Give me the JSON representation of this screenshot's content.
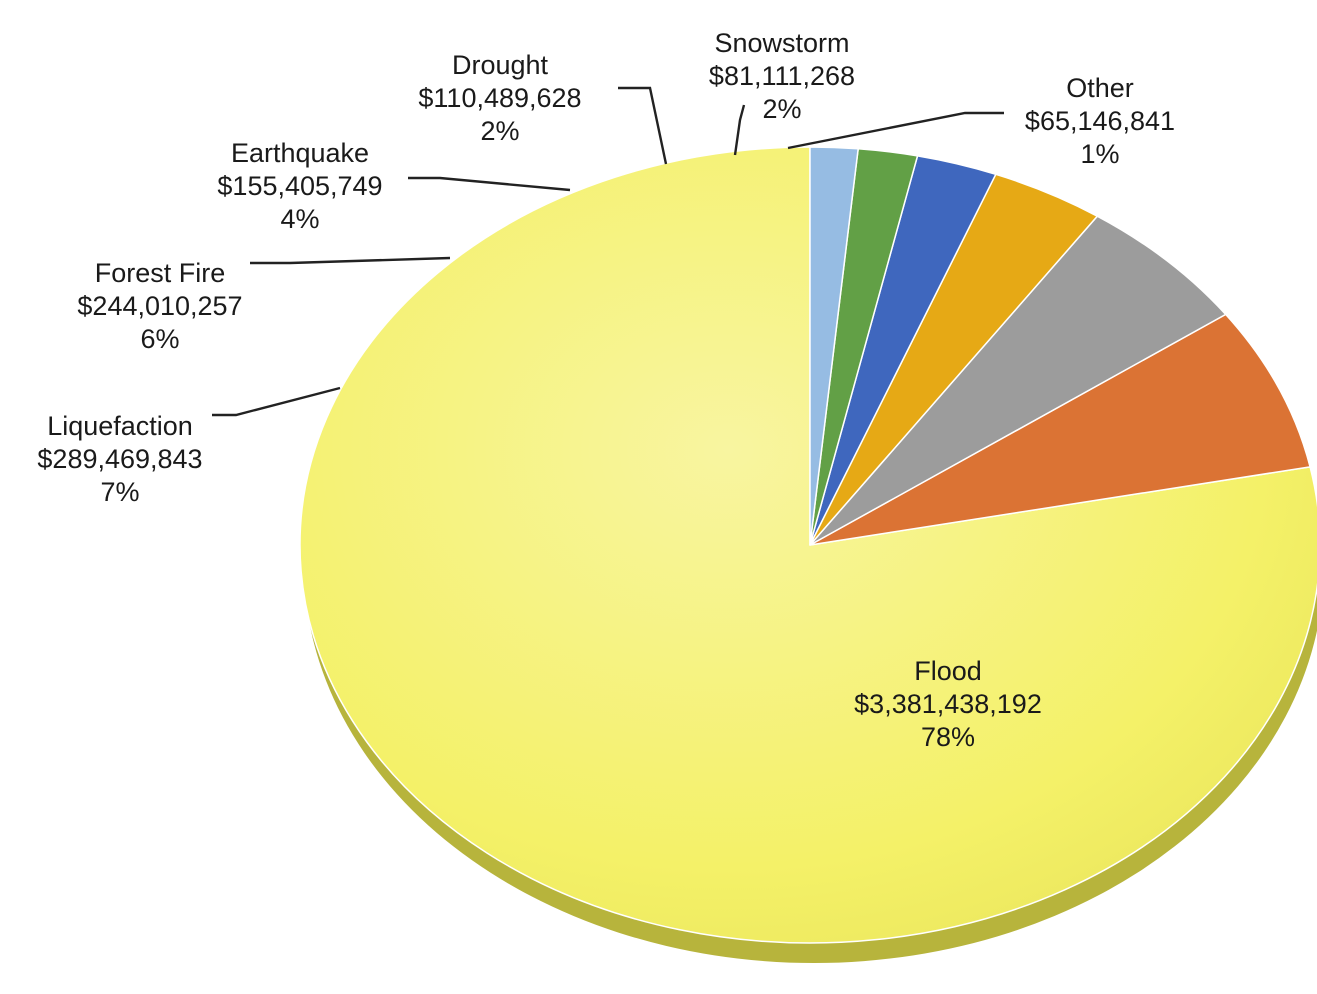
{
  "chart_data": {
    "type": "pie",
    "title": "",
    "style": "3d-tilted",
    "start_angle_deg": 0,
    "direction": "counterclockwise",
    "slices": [
      {
        "name": "Flood",
        "value": 3381438192,
        "value_label": "$3,381,438,192",
        "percent_label": "78%",
        "color": "#F4F168"
      },
      {
        "name": "Liquefaction",
        "value": 289469843,
        "value_label": "$289,469,843",
        "percent_label": "7%",
        "color": "#DB7334"
      },
      {
        "name": "Forest Fire",
        "value": 244010257,
        "value_label": "$244,010,257",
        "percent_label": "6%",
        "color": "#9C9C9C"
      },
      {
        "name": "Earthquake",
        "value": 155405749,
        "value_label": "$155,405,749",
        "percent_label": "4%",
        "color": "#E6A915"
      },
      {
        "name": "Drought",
        "value": 110489628,
        "value_label": "$110,489,628",
        "percent_label": "2%",
        "color": "#3F67BE"
      },
      {
        "name": "Snowstorm",
        "value": 81111268,
        "value_label": "$81,111,268",
        "percent_label": "2%",
        "color": "#62A046"
      },
      {
        "name": "Other",
        "value": 65146841,
        "value_label": "$65,146,841",
        "percent_label": "1%",
        "color": "#96BCE3"
      }
    ],
    "legend": "none"
  }
}
